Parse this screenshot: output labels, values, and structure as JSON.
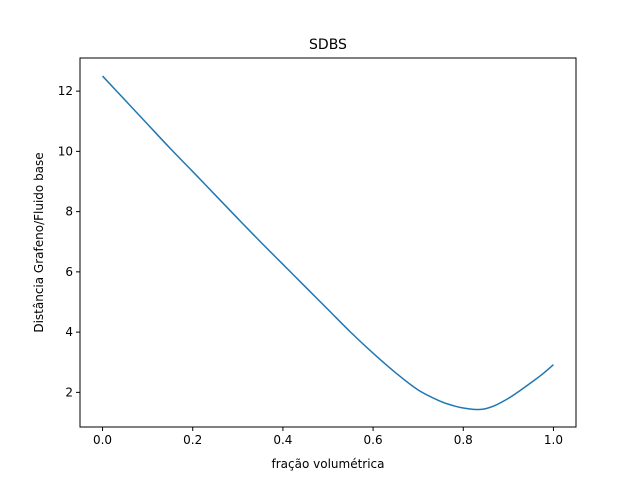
{
  "chart_data": {
    "type": "line",
    "title": "SDBS",
    "xlabel": "fração volumétrica",
    "ylabel": "Distância Grafeno/Fluido base",
    "xlim": [
      -0.05,
      1.05
    ],
    "ylim": [
      0.85,
      13.1
    ],
    "grid": false,
    "x_ticks": [
      0.0,
      0.2,
      0.4,
      0.6,
      0.8,
      1.0
    ],
    "x_tick_labels": [
      "0.0",
      "0.2",
      "0.4",
      "0.6",
      "0.8",
      "1.0"
    ],
    "y_ticks": [
      2,
      4,
      6,
      8,
      10,
      12
    ],
    "y_tick_labels": [
      "2",
      "4",
      "6",
      "8",
      "10",
      "12"
    ],
    "series": [
      {
        "color": "#1f77b4",
        "x": [
          0.0,
          0.05,
          0.1,
          0.15,
          0.2,
          0.25,
          0.3,
          0.35,
          0.4,
          0.45,
          0.5,
          0.55,
          0.6,
          0.65,
          0.7,
          0.75,
          0.78,
          0.8,
          0.82,
          0.835,
          0.85,
          0.87,
          0.9,
          0.925,
          0.95,
          0.975,
          1.0
        ],
        "y": [
          12.5,
          11.7,
          10.9,
          10.1,
          9.33,
          8.55,
          7.77,
          7.0,
          6.25,
          5.5,
          4.75,
          4.0,
          3.3,
          2.65,
          2.08,
          1.7,
          1.55,
          1.48,
          1.44,
          1.43,
          1.46,
          1.56,
          1.8,
          2.05,
          2.32,
          2.6,
          2.92
        ]
      }
    ]
  }
}
